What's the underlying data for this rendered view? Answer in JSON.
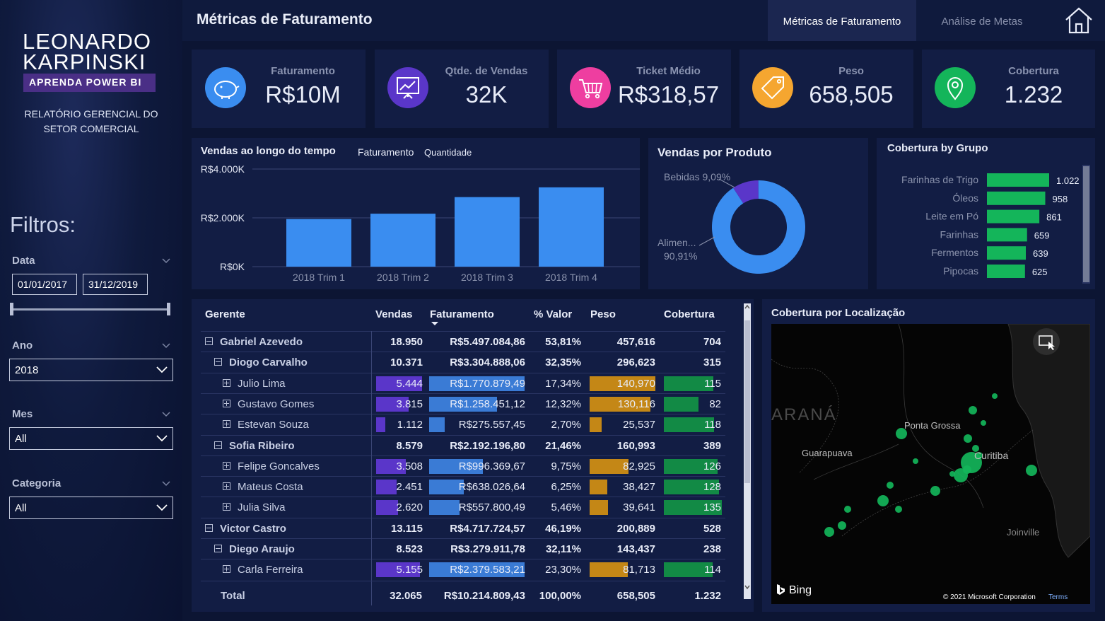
{
  "logo": {
    "line1": "LEONARDO",
    "line2": "KARPINSKI",
    "badge": "APRENDA POWER BI"
  },
  "sidebar": {
    "subtitle_1": "RELATÓRIO GERENCIAL DO",
    "subtitle_2": "SETOR COMERCIAL",
    "filters_title": "Filtros:",
    "data_label": "Data",
    "date_start": "01/01/2017",
    "date_end": "31/12/2019",
    "ano_label": "Ano",
    "ano_value": "2018",
    "mes_label": "Mes",
    "mes_value": "All",
    "categoria_label": "Categoria",
    "categoria_value": "All"
  },
  "header": {
    "title": "Métricas de Faturamento",
    "tabs": [
      {
        "label": "Métricas de Faturamento",
        "active": true
      },
      {
        "label": "Análise de Metas",
        "active": false
      }
    ],
    "home_icon": "home-icon"
  },
  "kpis": [
    {
      "label": "Faturamento",
      "value": "R$10M",
      "icon": "piggy-bank-icon",
      "color": "#3a8df0"
    },
    {
      "label": "Qtde. de Vendas",
      "value": "32K",
      "icon": "presentation-chart-icon",
      "color": "#5a36c9"
    },
    {
      "label": "Ticket Médio",
      "value": "R$318,57",
      "icon": "shopping-cart-icon",
      "color": "#ee3ea0"
    },
    {
      "label": "Peso",
      "value": "658,505",
      "icon": "price-tag-icon",
      "color": "#f5a630"
    },
    {
      "label": "Cobertura",
      "value": "1.232",
      "icon": "location-pin-icon",
      "color": "#14b55a"
    }
  ],
  "vendas_tempo": {
    "title": "Vendas ao longo do tempo",
    "tab1": "Faturamento",
    "tab2": "Quantidade",
    "chart_data": {
      "type": "bar",
      "categories": [
        "2018 Trim 1",
        "2018 Trim 2",
        "2018 Trim 3",
        "2018 Trim 4"
      ],
      "values": [
        1950,
        2170,
        2850,
        3250
      ],
      "ylim": [
        0,
        4000
      ],
      "yticks": [
        "R$0K",
        "R$2.000K",
        "R$4.000K"
      ],
      "color": "#3a8df0"
    }
  },
  "vendas_produto": {
    "title": "Vendas por Produto",
    "chart_data": {
      "type": "pie",
      "slices": [
        {
          "label": "Bebidas 9,09%",
          "value": 9.09,
          "color": "#5a36c9"
        },
        {
          "label_1": "Alimen...",
          "label_2": "90,91%",
          "value": 90.91,
          "color": "#3a8df0"
        }
      ]
    }
  },
  "cobertura_grupo": {
    "title": "Cobertura by Grupo",
    "chart_data": {
      "type": "bar",
      "categories": [
        "Farinhas de Trigo",
        "Óleos",
        "Leite em Pó",
        "Farinhas",
        "Fermentos",
        "Pipocas"
      ],
      "values": [
        1022,
        958,
        861,
        659,
        639,
        625
      ],
      "labels": [
        "1.022",
        "958",
        "861",
        "659",
        "639",
        "625"
      ],
      "xlim": [
        0,
        1022
      ],
      "color": "#14b55a"
    }
  },
  "matrix": {
    "headers": [
      "Gerente",
      "Vendas",
      "Faturamento",
      "% Valor",
      "Peso",
      "Cobertura"
    ],
    "rows": [
      {
        "name": "Gabriel Azevedo",
        "level": 0,
        "vendas": "18.950",
        "fat": "R$5.497.084,86",
        "pct": "53,81%",
        "peso": "457,616",
        "cob": "704"
      },
      {
        "name": "Diogo Carvalho",
        "level": 1,
        "vendas": "10.371",
        "fat": "R$3.304.888,06",
        "pct": "32,35%",
        "peso": "296,623",
        "cob": "315"
      },
      {
        "name": "Julio Lima",
        "level": 2,
        "vendas": "5.444",
        "fat": "R$1.770.879,49",
        "pct": "17,34%",
        "peso": "140,970",
        "cob": "115",
        "bv": 1.0,
        "bf": 1.0,
        "bp": 1.0,
        "bc": 0.85
      },
      {
        "name": "Gustavo Gomes",
        "level": 2,
        "vendas": "3.815",
        "fat": "R$1.258.451,12",
        "pct": "12,32%",
        "peso": "130,116",
        "cob": "82",
        "bv": 0.7,
        "bf": 0.71,
        "bp": 0.92,
        "bc": 0.6
      },
      {
        "name": "Estevan Souza",
        "level": 2,
        "vendas": "1.112",
        "fat": "R$275.557,45",
        "pct": "2,70%",
        "peso": "25,537",
        "cob": "118",
        "bv": 0.2,
        "bf": 0.16,
        "bp": 0.18,
        "bc": 0.87
      },
      {
        "name": "Sofia Ribeiro",
        "level": 1,
        "vendas": "8.579",
        "fat": "R$2.192.196,80",
        "pct": "21,46%",
        "peso": "160,993",
        "cob": "389"
      },
      {
        "name": "Felipe Goncalves",
        "level": 2,
        "vendas": "3.508",
        "fat": "R$996.369,67",
        "pct": "9,75%",
        "peso": "82,925",
        "cob": "126",
        "bv": 0.64,
        "bf": 0.56,
        "bp": 0.59,
        "bc": 0.93
      },
      {
        "name": "Mateus Costa",
        "level": 2,
        "vendas": "2.451",
        "fat": "R$638.026,64",
        "pct": "6,25%",
        "peso": "38,427",
        "cob": "128",
        "bv": 0.45,
        "bf": 0.36,
        "bp": 0.27,
        "bc": 0.95
      },
      {
        "name": "Julia Silva",
        "level": 2,
        "vendas": "2.620",
        "fat": "R$557.800,49",
        "pct": "5,46%",
        "peso": "39,641",
        "cob": "135",
        "bv": 0.48,
        "bf": 0.32,
        "bp": 0.28,
        "bc": 1.0
      },
      {
        "name": "Victor Castro",
        "level": 0,
        "vendas": "13.115",
        "fat": "R$4.717.724,57",
        "pct": "46,19%",
        "peso": "200,889",
        "cob": "528"
      },
      {
        "name": "Diego Araujo",
        "level": 1,
        "vendas": "8.523",
        "fat": "R$3.279.911,78",
        "pct": "32,11%",
        "peso": "143,437",
        "cob": "238"
      },
      {
        "name": "Carla Ferreira",
        "level": 2,
        "vendas": "5.155",
        "fat": "R$2.379.583,21",
        "pct": "23,30%",
        "peso": "81,713",
        "cob": "114",
        "bv": 0.95,
        "bf": 1.0,
        "bp": 0.58,
        "bc": 0.84
      }
    ],
    "total": {
      "name": "Total",
      "vendas": "32.065",
      "fat": "R$10.214.809,43",
      "pct": "100,00%",
      "peso": "658,505",
      "cob": "1.232"
    },
    "colors": {
      "vendas": "#5a36c9",
      "fat": "#3a7bd5",
      "peso": "#c48716",
      "cob": "#128a45"
    }
  },
  "map": {
    "title": "Cobertura por Localização",
    "labels": [
      "ARANÁ",
      "Ponta Grossa",
      "Guarapuava",
      "Curitiba",
      "Joinville"
    ],
    "bing": "Bing",
    "copyright": "© 2021 Microsoft Corporation",
    "terms": "Terms",
    "dot_color": "#14b55a"
  }
}
